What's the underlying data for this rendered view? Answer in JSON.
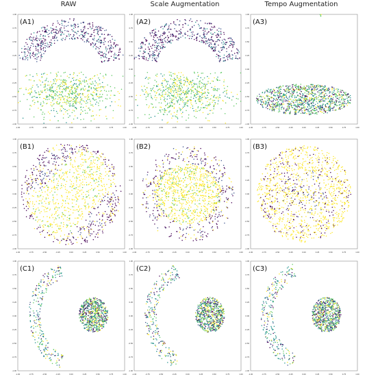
{
  "column_headers": [
    "RAW",
    "Scale Augmentation",
    "Tempo Augmentation"
  ],
  "colors": {
    "purple": "#440154",
    "blue": "#3b528b",
    "teal": "#21918c",
    "green": "#5ec962",
    "yellow": "#fde725"
  },
  "chart_data": [
    {
      "type": "scatter",
      "label": "(A1)",
      "xlim": [
        -1,
        1
      ],
      "ylim": [
        -1,
        1
      ],
      "pattern": "upper_lower",
      "xticks": [
        "-1.00",
        "-0.75",
        "-0.50",
        "-0.25",
        "0.00",
        "0.25",
        "0.50",
        "0.75",
        "1.00"
      ],
      "yticks": [
        "1.00",
        "0.75",
        "0.50",
        "0.25",
        "0.00",
        "-0.25",
        "-0.50",
        "-0.75",
        "-1.00"
      ]
    },
    {
      "type": "scatter",
      "label": "(A2)",
      "xlim": [
        -1,
        1
      ],
      "ylim": [
        -1,
        1
      ],
      "pattern": "upper_lower",
      "xticks": [
        "-1.00",
        "-0.75",
        "-0.50",
        "-0.25",
        "0.00",
        "0.25",
        "0.50",
        "0.75",
        "1.00"
      ],
      "yticks": [
        "1.00",
        "0.75",
        "0.50",
        "0.25",
        "0.00",
        "-0.25",
        "-0.50",
        "-0.75",
        "-1.00"
      ]
    },
    {
      "type": "scatter",
      "label": "(A3)",
      "xlim": [
        -1,
        1
      ],
      "ylim": [
        -1,
        1
      ],
      "pattern": "flat_ellipse",
      "xticks": [
        "-1.00",
        "-0.75",
        "-0.50",
        "-0.25",
        "0.00",
        "0.25",
        "0.50",
        "0.75",
        "1.00"
      ],
      "yticks": [
        "1.00",
        "0.75",
        "0.50",
        "0.25",
        "0.00",
        "-0.25",
        "-0.50",
        "-0.75",
        "-1.00"
      ]
    },
    {
      "type": "scatter",
      "label": "(B1)",
      "xlim": [
        -1,
        1
      ],
      "ylim": [
        -1,
        1
      ],
      "pattern": "diagonal_disk",
      "xticks": [
        "-1.00",
        "-0.75",
        "-0.50",
        "-0.25",
        "0.00",
        "0.25",
        "0.50",
        "0.75",
        "1.00"
      ],
      "yticks": [
        "1.00",
        "0.75",
        "0.50",
        "0.25",
        "0.00",
        "-0.25",
        "-0.50",
        "-0.75",
        "-1.00"
      ]
    },
    {
      "type": "scatter",
      "label": "(B2)",
      "xlim": [
        -1,
        1
      ],
      "ylim": [
        -1,
        1
      ],
      "pattern": "ring_disk",
      "xticks": [
        "-1.00",
        "-0.75",
        "-0.50",
        "-0.25",
        "0.00",
        "0.25",
        "0.50",
        "0.75",
        "1.00"
      ],
      "yticks": [
        "1.00",
        "0.75",
        "0.50",
        "0.25",
        "0.00",
        "-0.25",
        "-0.50",
        "-0.75",
        "-1.00"
      ]
    },
    {
      "type": "scatter",
      "label": "(B3)",
      "xlim": [
        -1,
        1
      ],
      "ylim": [
        -1,
        1
      ],
      "pattern": "mixed_disk",
      "xticks": [
        "-1.00",
        "-0.75",
        "-0.50",
        "-0.25",
        "0.00",
        "0.25",
        "0.50",
        "0.75",
        "1.00"
      ],
      "yticks": [
        "1.00",
        "0.75",
        "0.50",
        "0.25",
        "0.00",
        "-0.25",
        "-0.50",
        "-0.75",
        "-1.00"
      ]
    },
    {
      "type": "scatter",
      "label": "(C1)",
      "xlim": [
        -1,
        1
      ],
      "ylim": [
        -1,
        1
      ],
      "pattern": "arc_blob",
      "xticks": [
        "-1.00",
        "-0.75",
        "-0.50",
        "-0.25",
        "0.00",
        "0.25",
        "0.50",
        "0.75",
        "1.00"
      ],
      "yticks": [
        "1.00",
        "0.75",
        "0.50",
        "0.25",
        "0.00",
        "-0.25",
        "-0.50",
        "-0.75",
        "-1.00"
      ]
    },
    {
      "type": "scatter",
      "label": "(C2)",
      "xlim": [
        -1,
        1
      ],
      "ylim": [
        -1,
        1
      ],
      "pattern": "arc_blob",
      "xticks": [
        "-1.00",
        "-0.75",
        "-0.50",
        "-0.25",
        "0.00",
        "0.25",
        "0.50",
        "0.75",
        "1.00"
      ],
      "yticks": [
        "1.00",
        "0.75",
        "0.50",
        "0.25",
        "0.00",
        "-0.25",
        "-0.50",
        "-0.75",
        "-1.00"
      ]
    },
    {
      "type": "scatter",
      "label": "(C3)",
      "xlim": [
        -1,
        1
      ],
      "ylim": [
        -1,
        1
      ],
      "pattern": "arc_blob",
      "xticks": [
        "-1.00",
        "-0.75",
        "-0.50",
        "-0.25",
        "0.00",
        "0.25",
        "0.50",
        "0.75",
        "1.00"
      ],
      "yticks": [
        "1.00",
        "0.75",
        "0.50",
        "0.25",
        "0.00",
        "-0.25",
        "-0.50",
        "-0.75",
        "-1.00"
      ]
    }
  ]
}
